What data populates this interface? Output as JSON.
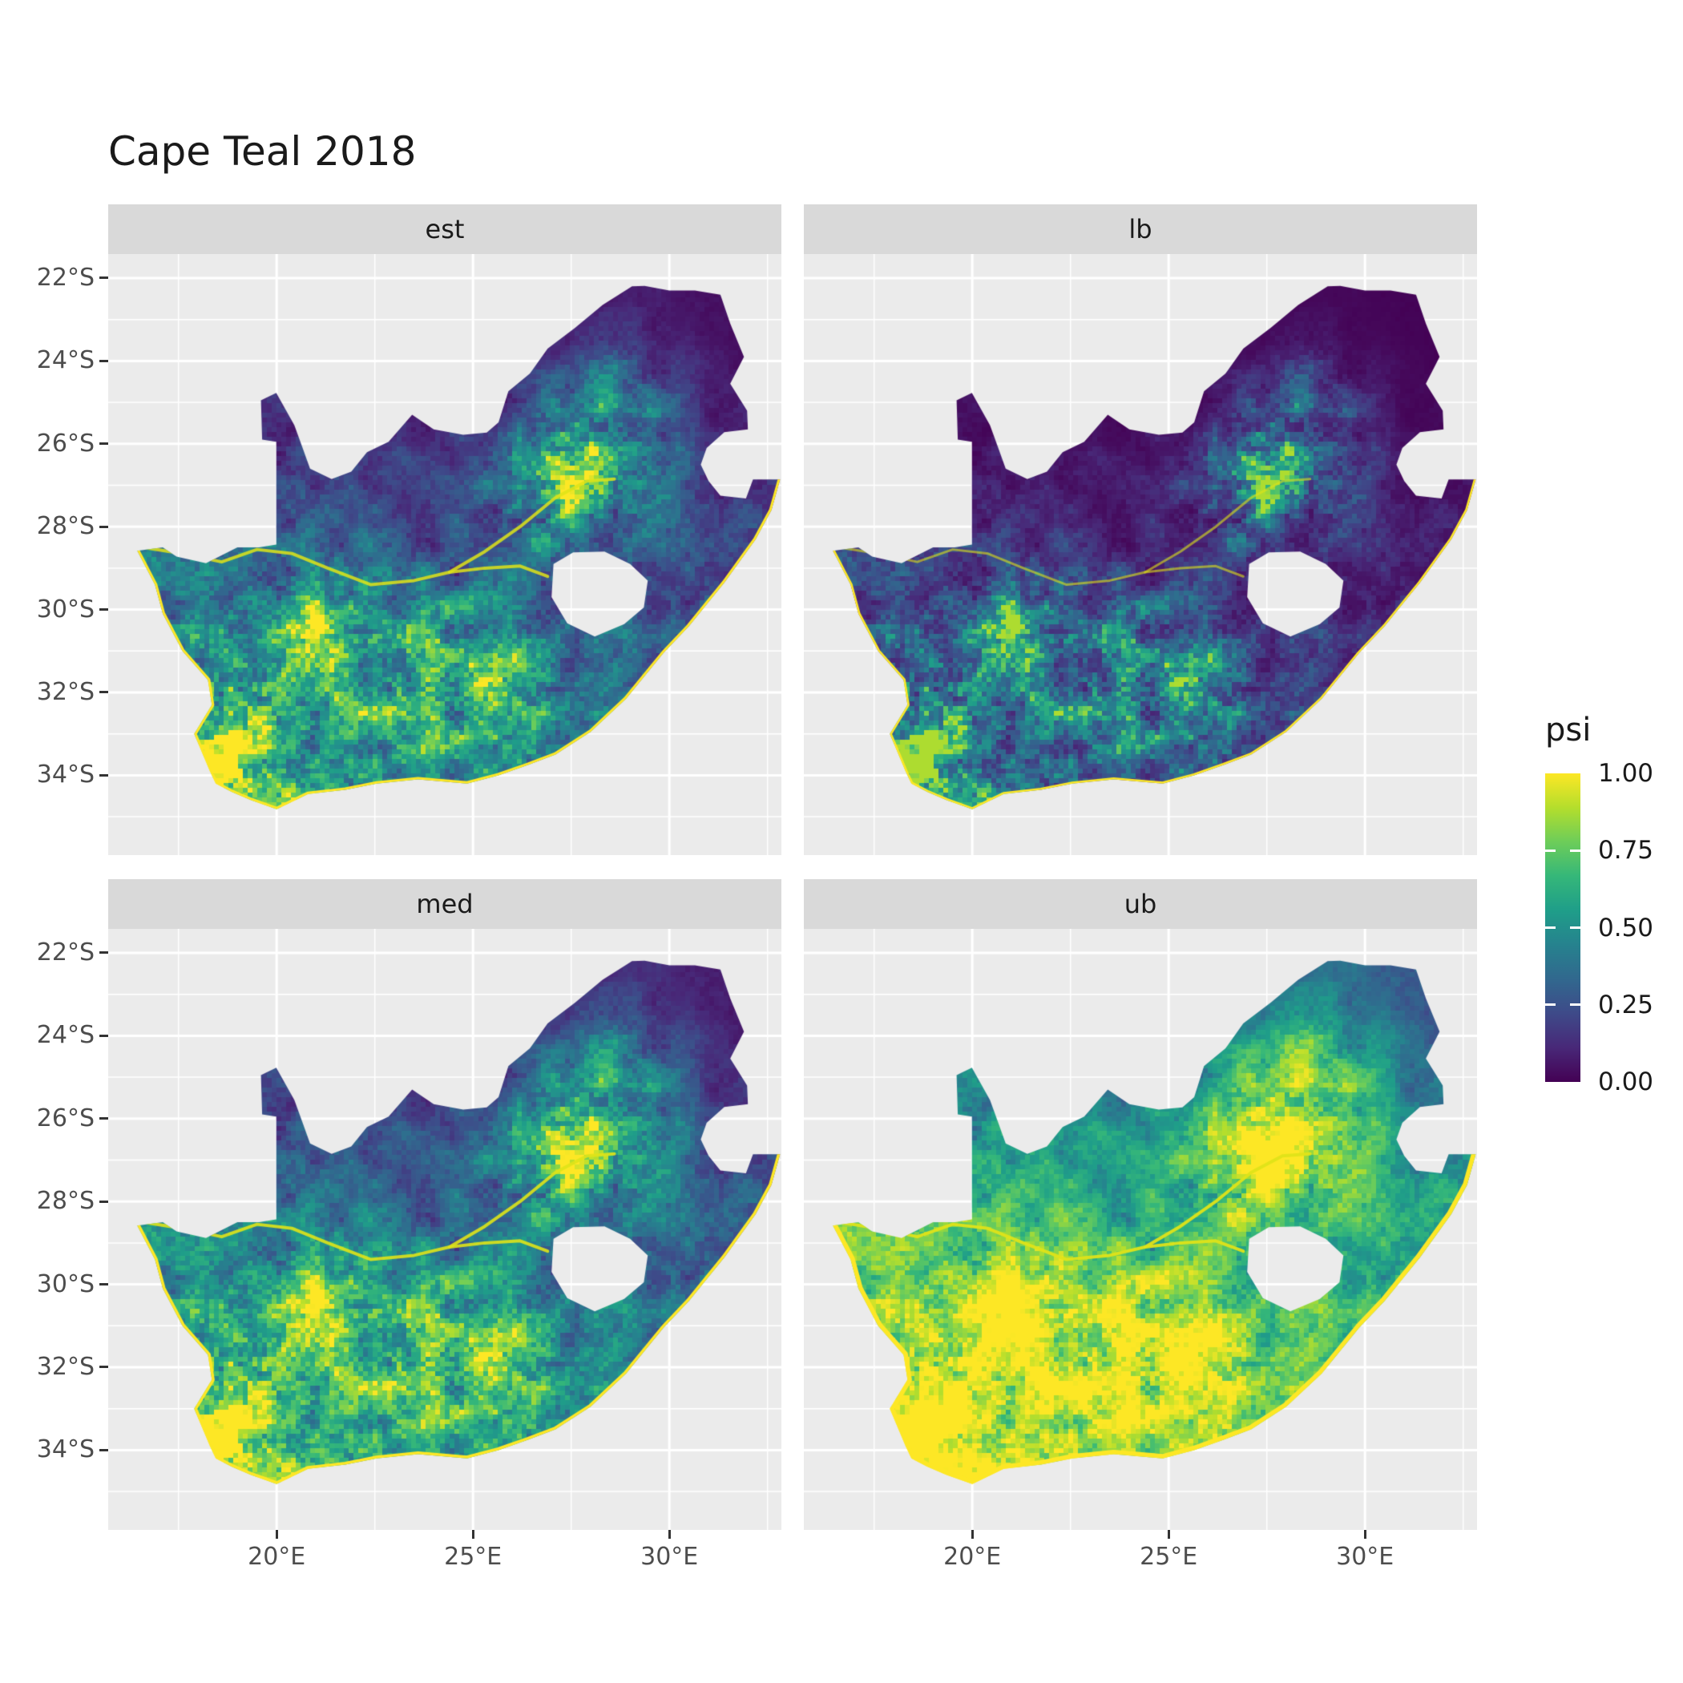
{
  "title": "Cape Teal 2018",
  "facets": [
    {
      "label": "est"
    },
    {
      "label": "lb"
    },
    {
      "label": "med"
    },
    {
      "label": "ub"
    }
  ],
  "legend": {
    "title": "psi",
    "ticks": [
      {
        "value": 1.0,
        "label": "1.00"
      },
      {
        "value": 0.75,
        "label": "0.75"
      },
      {
        "value": 0.5,
        "label": "0.50"
      },
      {
        "value": 0.25,
        "label": "0.25"
      },
      {
        "value": 0.0,
        "label": "0.00"
      }
    ]
  },
  "axes": {
    "x_ticks": [
      {
        "value": 20,
        "label": "20°E"
      },
      {
        "value": 25,
        "label": "25°E"
      },
      {
        "value": 30,
        "label": "30°E"
      }
    ],
    "y_ticks": [
      {
        "value": 22,
        "label": "22°S"
      },
      {
        "value": 24,
        "label": "24°S"
      },
      {
        "value": 26,
        "label": "26°S"
      },
      {
        "value": 28,
        "label": "28°S"
      },
      {
        "value": 30,
        "label": "30°S"
      },
      {
        "value": 32,
        "label": "32°S"
      },
      {
        "value": 34,
        "label": "34°S"
      }
    ]
  },
  "colors": {
    "panel_bg": "#EBEBEB",
    "strip_bg": "#D9D9D9",
    "grid": "#FFFFFF",
    "axis_text": "#4D4D4D",
    "tick_mark": "#333333",
    "coast": "#FDE725",
    "river": "#DFE318"
  },
  "chart_data": {
    "type": "heatmap",
    "title": "Cape Teal 2018",
    "region": "South Africa occupancy raster map",
    "facet_variable": "statistic",
    "facets": [
      "est",
      "lb",
      "med",
      "ub"
    ],
    "fill_variable": "psi",
    "fill_range": [
      0,
      1
    ],
    "legend_title": "psi",
    "legend_breaks": [
      0.0,
      0.25,
      0.5,
      0.75,
      1.0
    ],
    "palette": "viridis",
    "viridis_stops": [
      "#440154",
      "#482878",
      "#3e4a89",
      "#31688e",
      "#26828e",
      "#1f9e89",
      "#35b779",
      "#6dcd59",
      "#b4de2c",
      "#fde725"
    ],
    "x_axis": {
      "label": "",
      "ticks": [
        "20°E",
        "25°E",
        "30°E"
      ],
      "range_deg_east": [
        15.71,
        32.85
      ],
      "grid": true
    },
    "y_axis": {
      "label": "",
      "ticks": [
        "22°S",
        "24°S",
        "26°S",
        "28°S",
        "30°S",
        "32°S",
        "34°S"
      ],
      "range_deg_south": [
        21.42,
        35.93
      ],
      "grid": true
    },
    "facet_transforms": [
      {
        "name": "est",
        "gamma": 1.3,
        "gain": 1.0,
        "coast_width": 6,
        "river_alpha": 0.85
      },
      {
        "name": "lb",
        "gamma": 2.0,
        "gain": 0.88,
        "coast_width": 5,
        "river_alpha": 0.6
      },
      {
        "name": "med",
        "gamma": 1.05,
        "gain": 1.05,
        "coast_width": 7,
        "river_alpha": 0.9
      },
      {
        "name": "ub",
        "gamma": 0.6,
        "gain": 1.2,
        "coast_width": 11,
        "river_alpha": 0.95
      }
    ],
    "outline": [
      [
        16.45,
        28.58
      ],
      [
        17.1,
        28.5
      ],
      [
        17.45,
        28.72
      ],
      [
        18.2,
        28.88
      ],
      [
        19.0,
        28.5
      ],
      [
        19.55,
        28.5
      ],
      [
        19.99,
        28.43
      ],
      [
        19.99,
        25.95
      ],
      [
        19.63,
        25.9
      ],
      [
        19.6,
        24.95
      ],
      [
        19.99,
        24.77
      ],
      [
        20.45,
        25.55
      ],
      [
        20.68,
        26.15
      ],
      [
        20.85,
        26.6
      ],
      [
        21.4,
        26.85
      ],
      [
        21.9,
        26.67
      ],
      [
        22.3,
        26.2
      ],
      [
        22.85,
        25.95
      ],
      [
        23.45,
        25.3
      ],
      [
        24.0,
        25.65
      ],
      [
        24.75,
        25.78
      ],
      [
        25.35,
        25.73
      ],
      [
        25.65,
        25.48
      ],
      [
        25.9,
        24.73
      ],
      [
        26.45,
        24.3
      ],
      [
        26.9,
        23.7
      ],
      [
        27.6,
        23.2
      ],
      [
        28.3,
        22.65
      ],
      [
        29.05,
        22.2
      ],
      [
        29.37,
        22.19
      ],
      [
        30.0,
        22.3
      ],
      [
        30.65,
        22.3
      ],
      [
        31.3,
        22.4
      ],
      [
        31.55,
        23.1
      ],
      [
        31.9,
        23.9
      ],
      [
        31.55,
        24.55
      ],
      [
        31.98,
        25.2
      ],
      [
        32.0,
        25.65
      ],
      [
        31.4,
        25.72
      ],
      [
        30.95,
        26.1
      ],
      [
        30.8,
        26.5
      ],
      [
        31.0,
        26.9
      ],
      [
        31.3,
        27.25
      ],
      [
        31.95,
        27.32
      ],
      [
        32.13,
        26.86
      ],
      [
        32.82,
        26.86
      ],
      [
        32.6,
        27.6
      ],
      [
        32.2,
        28.3
      ],
      [
        31.4,
        29.35
      ],
      [
        30.5,
        30.4
      ],
      [
        29.85,
        31.05
      ],
      [
        28.9,
        32.15
      ],
      [
        28.0,
        32.95
      ],
      [
        27.1,
        33.5
      ],
      [
        26.4,
        33.75
      ],
      [
        25.65,
        34.0
      ],
      [
        24.85,
        34.2
      ],
      [
        23.6,
        34.1
      ],
      [
        22.55,
        34.2
      ],
      [
        21.75,
        34.35
      ],
      [
        20.8,
        34.45
      ],
      [
        20.0,
        34.82
      ],
      [
        19.35,
        34.6
      ],
      [
        18.85,
        34.4
      ],
      [
        18.45,
        34.2
      ],
      [
        18.3,
        33.9
      ],
      [
        17.9,
        33.0
      ],
      [
        18.35,
        32.3
      ],
      [
        18.25,
        31.7
      ],
      [
        17.6,
        31.0
      ],
      [
        17.1,
        30.1
      ],
      [
        16.9,
        29.4
      ],
      [
        16.45,
        28.58
      ]
    ],
    "lesotho_hole": [
      [
        27.05,
        28.9
      ],
      [
        27.55,
        28.62
      ],
      [
        28.35,
        28.6
      ],
      [
        29.0,
        28.9
      ],
      [
        29.45,
        29.3
      ],
      [
        29.35,
        29.95
      ],
      [
        28.85,
        30.35
      ],
      [
        28.1,
        30.65
      ],
      [
        27.4,
        30.33
      ],
      [
        27.0,
        29.7
      ],
      [
        27.05,
        28.9
      ]
    ],
    "coast": [
      [
        32.82,
        26.86
      ],
      [
        32.6,
        27.6
      ],
      [
        32.2,
        28.3
      ],
      [
        31.4,
        29.35
      ],
      [
        30.5,
        30.4
      ],
      [
        29.85,
        31.05
      ],
      [
        28.9,
        32.15
      ],
      [
        28.0,
        32.95
      ],
      [
        27.1,
        33.5
      ],
      [
        26.4,
        33.75
      ],
      [
        25.65,
        34.0
      ],
      [
        24.85,
        34.2
      ],
      [
        23.6,
        34.1
      ],
      [
        22.55,
        34.2
      ],
      [
        21.75,
        34.35
      ],
      [
        20.8,
        34.45
      ],
      [
        20.0,
        34.82
      ],
      [
        19.35,
        34.6
      ],
      [
        18.85,
        34.4
      ],
      [
        18.45,
        34.2
      ],
      [
        18.3,
        33.9
      ],
      [
        17.9,
        33.0
      ],
      [
        18.35,
        32.3
      ],
      [
        18.25,
        31.7
      ],
      [
        17.6,
        31.0
      ],
      [
        17.1,
        30.1
      ],
      [
        16.9,
        29.4
      ],
      [
        16.45,
        28.58
      ]
    ],
    "rivers": [
      [
        [
          16.6,
          28.5
        ],
        [
          17.6,
          28.65
        ],
        [
          18.6,
          28.85
        ],
        [
          19.5,
          28.55
        ],
        [
          20.4,
          28.65
        ],
        [
          21.3,
          29.0
        ],
        [
          22.4,
          29.4
        ],
        [
          23.5,
          29.3
        ],
        [
          24.4,
          29.1
        ],
        [
          25.3,
          29.0
        ],
        [
          26.2,
          28.95
        ],
        [
          26.9,
          29.2
        ]
      ],
      [
        [
          24.4,
          29.1
        ],
        [
          25.3,
          28.6
        ],
        [
          26.2,
          28.0
        ],
        [
          27.1,
          27.3
        ],
        [
          27.9,
          26.9
        ],
        [
          28.6,
          26.85
        ]
      ]
    ],
    "hotspots": [
      {
        "lon": 28.1,
        "latS": 26.3,
        "amp": 0.5,
        "sig": 1.25
      },
      {
        "lon": 26.7,
        "latS": 27.0,
        "amp": 0.28,
        "sig": 1.1
      },
      {
        "lon": 20.8,
        "latS": 30.4,
        "amp": 0.3,
        "sig": 1.0
      },
      {
        "lon": 23.8,
        "latS": 31.4,
        "amp": 0.3,
        "sig": 1.3
      },
      {
        "lon": 19.3,
        "latS": 33.5,
        "amp": 0.33,
        "sig": 1.0
      },
      {
        "lon": 25.8,
        "latS": 31.8,
        "amp": 0.22,
        "sig": 1.2
      },
      {
        "lon": 28.7,
        "latS": 24.3,
        "amp": 0.18,
        "sig": 1.0
      },
      {
        "lon": 18.6,
        "latS": 31.9,
        "amp": 0.2,
        "sig": 0.9
      }
    ]
  }
}
